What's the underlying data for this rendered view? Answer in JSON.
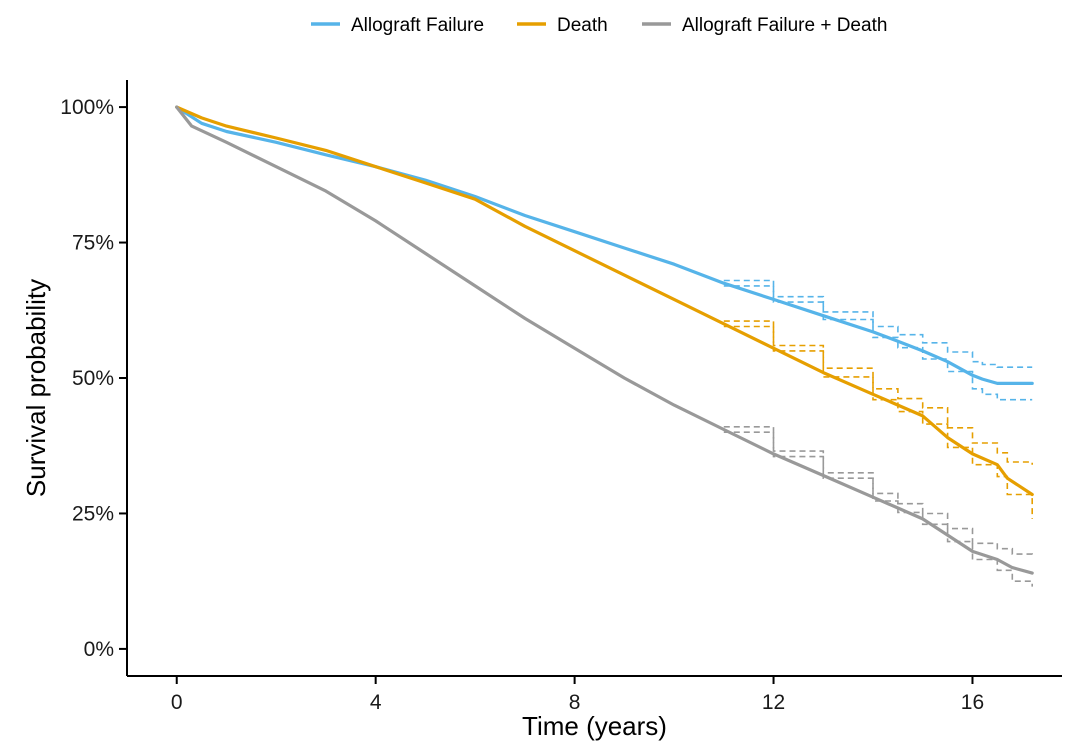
{
  "chart_data": {
    "type": "line",
    "title": "",
    "xlabel": "Time (years)",
    "ylabel": "Survival probability",
    "xlim": [
      -1,
      17.8
    ],
    "ylim": [
      -0.05,
      1.05
    ],
    "x_ticks": [
      0,
      4,
      8,
      12,
      16
    ],
    "y_ticks": [
      0,
      0.25,
      0.5,
      0.75,
      1.0
    ],
    "y_tick_labels": [
      "0%",
      "25%",
      "50%",
      "75%",
      "100%"
    ],
    "grid": false,
    "legend_position": "top",
    "series": [
      {
        "name": "Allograft Failure",
        "color": "#56B4E9",
        "x": [
          0,
          0.5,
          1,
          2,
          3,
          4,
          5,
          6,
          7,
          8,
          9,
          10,
          11,
          12,
          13,
          14,
          14.5,
          15,
          15.5,
          16,
          16.2,
          16.5,
          17.2
        ],
        "y": [
          1.0,
          0.97,
          0.955,
          0.935,
          0.912,
          0.89,
          0.865,
          0.835,
          0.8,
          0.77,
          0.74,
          0.71,
          0.675,
          0.645,
          0.615,
          0.585,
          0.568,
          0.55,
          0.53,
          0.505,
          0.498,
          0.49,
          0.49
        ],
        "ci_upper": [
          null,
          null,
          null,
          null,
          null,
          null,
          null,
          null,
          null,
          null,
          null,
          null,
          0.68,
          0.65,
          0.622,
          0.595,
          0.58,
          0.565,
          0.548,
          0.53,
          0.525,
          0.52,
          0.52
        ],
        "ci_lower": [
          null,
          null,
          null,
          null,
          null,
          null,
          null,
          null,
          null,
          null,
          null,
          null,
          0.67,
          0.64,
          0.608,
          0.575,
          0.556,
          0.535,
          0.512,
          0.48,
          0.47,
          0.46,
          0.46
        ]
      },
      {
        "name": "Death",
        "color": "#E69F00",
        "x": [
          0,
          0.5,
          1,
          2,
          3,
          4,
          5,
          6,
          7,
          8,
          9,
          10,
          11,
          12,
          13,
          14,
          14.5,
          15,
          15.5,
          16,
          16.5,
          16.7,
          17.2
        ],
        "y": [
          1.0,
          0.98,
          0.965,
          0.943,
          0.92,
          0.89,
          0.86,
          0.83,
          0.78,
          0.735,
          0.69,
          0.645,
          0.6,
          0.555,
          0.51,
          0.47,
          0.45,
          0.43,
          0.39,
          0.36,
          0.34,
          0.315,
          0.285
        ],
        "ci_upper": [
          null,
          null,
          null,
          null,
          null,
          null,
          null,
          null,
          null,
          null,
          null,
          null,
          0.605,
          0.56,
          0.518,
          0.48,
          0.462,
          0.445,
          0.408,
          0.38,
          0.362,
          0.345,
          0.34
        ],
        "ci_lower": [
          null,
          null,
          null,
          null,
          null,
          null,
          null,
          null,
          null,
          null,
          null,
          null,
          0.595,
          0.55,
          0.502,
          0.46,
          0.438,
          0.415,
          0.372,
          0.34,
          0.318,
          0.285,
          0.24
        ]
      },
      {
        "name": "Allograft Failure + Death",
        "color": "#999999",
        "x": [
          0,
          0.3,
          1,
          2,
          3,
          4,
          5,
          6,
          7,
          8,
          9,
          10,
          11,
          12,
          13,
          14,
          14.5,
          15,
          15.5,
          16,
          16.5,
          16.8,
          17.2
        ],
        "y": [
          1.0,
          0.965,
          0.935,
          0.89,
          0.845,
          0.79,
          0.73,
          0.67,
          0.61,
          0.555,
          0.5,
          0.45,
          0.405,
          0.36,
          0.32,
          0.28,
          0.26,
          0.24,
          0.21,
          0.18,
          0.165,
          0.15,
          0.14
        ],
        "ci_upper": [
          null,
          null,
          null,
          null,
          null,
          null,
          null,
          null,
          null,
          null,
          null,
          null,
          0.41,
          0.365,
          0.325,
          0.287,
          0.268,
          0.25,
          0.222,
          0.195,
          0.185,
          0.175,
          0.17
        ],
        "ci_lower": [
          null,
          null,
          null,
          null,
          null,
          null,
          null,
          null,
          null,
          null,
          null,
          null,
          0.4,
          0.355,
          0.315,
          0.273,
          0.252,
          0.23,
          0.198,
          0.165,
          0.145,
          0.125,
          0.115
        ]
      }
    ]
  }
}
